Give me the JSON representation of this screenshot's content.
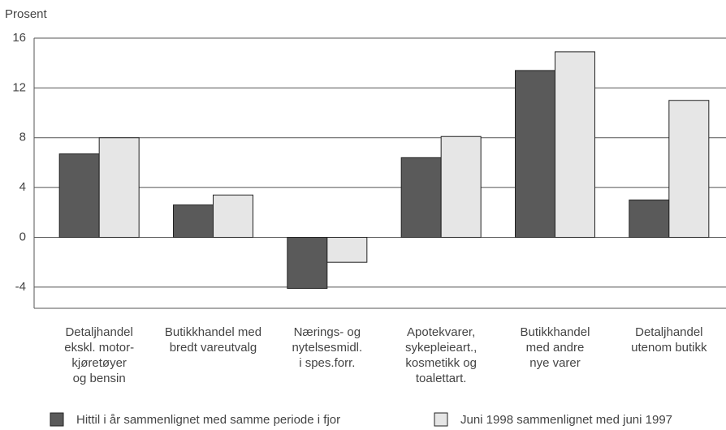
{
  "chart_data": {
    "type": "bar",
    "y_axis_label": "Prosent",
    "categories": [
      [
        "Detaljhandel",
        "ekskl. motor-",
        "kjøretøyer",
        "og bensin"
      ],
      [
        "Butikkhandel med",
        "bredt vareutvalg"
      ],
      [
        "Nærings- og",
        "nytelsesmidl.",
        "i spes.forr."
      ],
      [
        "Apotekvarer,",
        "sykepleieart.,",
        "kosmetikk og",
        "toalettart."
      ],
      [
        "Butikkhandel",
        "med andre",
        "nye varer"
      ],
      [
        "Detaljhandel",
        "utenom butikk"
      ]
    ],
    "series": [
      {
        "name": "Hittil i år sammenlignet med samme periode i fjor",
        "color": "#5a5a5a",
        "values": [
          6.7,
          2.6,
          -4.1,
          6.4,
          13.4,
          3.0
        ]
      },
      {
        "name": "Juni 1998 sammenlignet med juni 1997",
        "color": "#e6e6e6",
        "values": [
          8.0,
          3.4,
          -2.0,
          8.1,
          14.9,
          11.0
        ]
      }
    ],
    "ylim": [
      -5.7,
      16
    ],
    "yticks": [
      -4,
      0,
      4,
      8,
      12,
      16
    ],
    "grid": true
  }
}
